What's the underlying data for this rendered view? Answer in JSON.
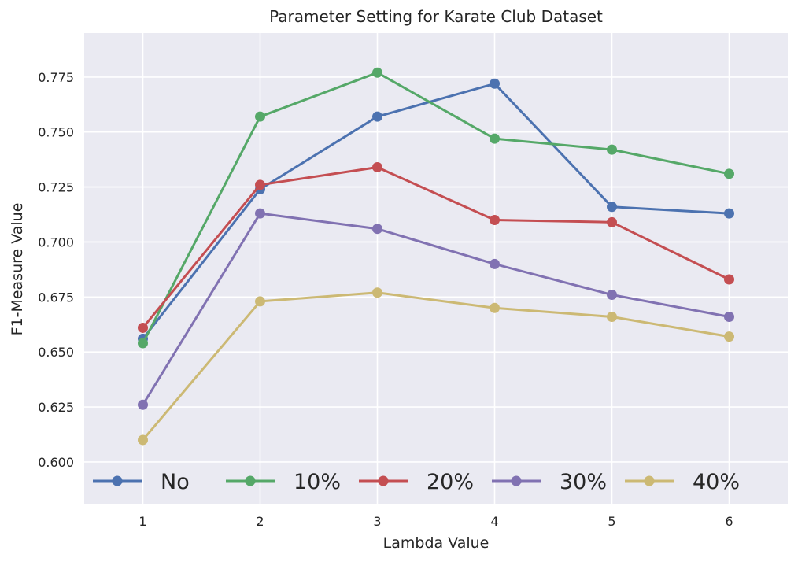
{
  "chart_data": {
    "type": "line",
    "title": "Parameter Setting for Karate Club Dataset",
    "xlabel": "Lambda Value",
    "ylabel": "F1-Measure Value",
    "x": [
      1,
      2,
      3,
      4,
      5,
      6
    ],
    "x_ticks": [
      "1",
      "2",
      "3",
      "4",
      "5",
      "6"
    ],
    "y_ticks": [
      "0.600",
      "0.625",
      "0.650",
      "0.675",
      "0.700",
      "0.725",
      "0.750",
      "0.775"
    ],
    "xlim": [
      0.5,
      6.5
    ],
    "ylim": [
      0.581,
      0.795
    ],
    "grid": true,
    "legend_position": "bottom",
    "series": [
      {
        "name": "No",
        "color": "#4c72b0",
        "values": [
          0.656,
          0.724,
          0.757,
          0.772,
          0.716,
          0.713
        ]
      },
      {
        "name": "10%",
        "color": "#55a868",
        "values": [
          0.654,
          0.757,
          0.777,
          0.747,
          0.742,
          0.731
        ]
      },
      {
        "name": "20%",
        "color": "#c44e52",
        "values": [
          0.661,
          0.726,
          0.734,
          0.71,
          0.709,
          0.683
        ]
      },
      {
        "name": "30%",
        "color": "#8172b2",
        "values": [
          0.626,
          0.713,
          0.706,
          0.69,
          0.676,
          0.666
        ]
      },
      {
        "name": "40%",
        "color": "#ccb974",
        "values": [
          0.61,
          0.673,
          0.677,
          0.67,
          0.666,
          0.657
        ]
      }
    ]
  },
  "colors": {
    "plot_background": "#eaeaf2",
    "grid": "#ffffff"
  }
}
